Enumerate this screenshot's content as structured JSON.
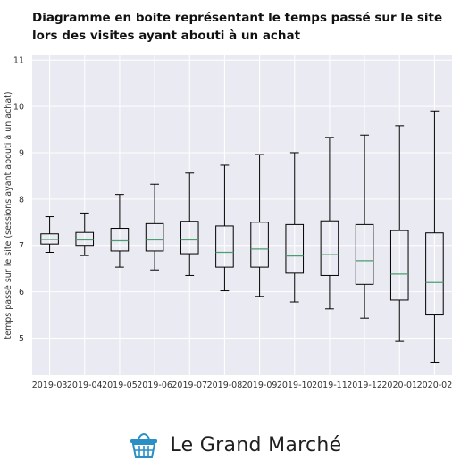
{
  "title": "Diagramme en boite représentant le temps passé sur le site lors des visites ayant abouti à un achat",
  "brand": {
    "name": "Le Grand Marché",
    "icon": "basket-icon"
  },
  "colors": {
    "plot_bg": "#eaeaf2",
    "box": "#000000",
    "median": "#4a9e6f",
    "grid": "#ffffff"
  },
  "chart_data": {
    "type": "box",
    "title": "",
    "xlabel": "",
    "ylabel": "temps passé sur le site (sessions ayant abouti à un achat)",
    "ylim": [
      4.2,
      11.1
    ],
    "yticks": [
      5,
      6,
      7,
      8,
      9,
      10,
      11
    ],
    "grid": true,
    "categories": [
      "2019-03",
      "2019-04",
      "2019-05",
      "2019-06",
      "2019-07",
      "2019-08",
      "2019-09",
      "2019-10",
      "2019-11",
      "2019-12",
      "2020-01",
      "2020-02"
    ],
    "boxes": [
      {
        "whisker_low": 6.85,
        "q1": 7.03,
        "median": 7.13,
        "q3": 7.25,
        "whisker_high": 7.62
      },
      {
        "whisker_low": 6.78,
        "q1": 7.0,
        "median": 7.12,
        "q3": 7.28,
        "whisker_high": 7.7
      },
      {
        "whisker_low": 6.53,
        "q1": 6.88,
        "median": 7.1,
        "q3": 7.37,
        "whisker_high": 8.1
      },
      {
        "whisker_low": 6.47,
        "q1": 6.88,
        "median": 7.12,
        "q3": 7.47,
        "whisker_high": 8.32
      },
      {
        "whisker_low": 6.35,
        "q1": 6.82,
        "median": 7.12,
        "q3": 7.52,
        "whisker_high": 8.56
      },
      {
        "whisker_low": 6.02,
        "q1": 6.53,
        "median": 6.85,
        "q3": 7.42,
        "whisker_high": 8.73
      },
      {
        "whisker_low": 5.9,
        "q1": 6.53,
        "median": 6.92,
        "q3": 7.5,
        "whisker_high": 8.96
      },
      {
        "whisker_low": 5.78,
        "q1": 6.4,
        "median": 6.77,
        "q3": 7.45,
        "whisker_high": 9.0
      },
      {
        "whisker_low": 5.63,
        "q1": 6.35,
        "median": 6.8,
        "q3": 7.53,
        "whisker_high": 9.33
      },
      {
        "whisker_low": 5.43,
        "q1": 6.16,
        "median": 6.67,
        "q3": 7.45,
        "whisker_high": 9.38
      },
      {
        "whisker_low": 4.93,
        "q1": 5.82,
        "median": 6.38,
        "q3": 7.32,
        "whisker_high": 9.58
      },
      {
        "whisker_low": 4.48,
        "q1": 5.5,
        "median": 6.2,
        "q3": 7.27,
        "whisker_high": 9.9
      }
    ]
  }
}
